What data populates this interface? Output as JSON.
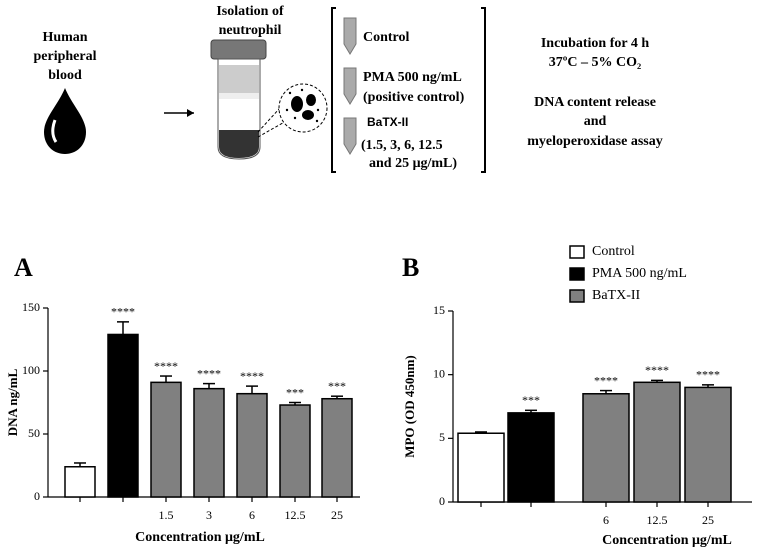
{
  "diagram": {
    "source": [
      "Human",
      "peripheral",
      "blood"
    ],
    "isolation": [
      "Isolation of",
      "neutrophil"
    ],
    "treatments": [
      "Control",
      "PMA 500 ng/mL",
      "(positive control)",
      "BaTX-II",
      "(1.5, 3, 6, 12.5",
      "and 25 μg/mL)"
    ],
    "conditions": [
      "Incubation for 4 h",
      "37ºC – 5% CO₂"
    ],
    "assays": [
      "DNA content release",
      "and",
      "myeloperoxidase assay"
    ]
  },
  "chart_data": [
    {
      "type": "bar",
      "panel": "A",
      "y_label": "DNA ng/mL",
      "x_label": "Concentration μg/mL",
      "categories": [
        null,
        null,
        "1.5",
        "3",
        "6",
        "12.5",
        "25"
      ],
      "values": [
        24,
        129,
        91,
        86,
        82,
        73,
        78
      ],
      "errors": [
        3,
        10,
        5,
        4,
        6,
        2,
        2
      ],
      "value_labels": [
        null,
        "****",
        "****",
        "****",
        "****",
        "***",
        "***"
      ],
      "colors": [
        "#ffffff",
        "#000000",
        "#808080",
        "#808080",
        "#808080",
        "#808080",
        "#808080"
      ],
      "ylim": [
        0,
        150
      ],
      "yticks": [
        0,
        50,
        100,
        150
      ]
    },
    {
      "type": "bar",
      "panel": "B",
      "y_label": "MPO (OD 450nm)",
      "x_label": "Concentration μg/mL",
      "categories": [
        null,
        null,
        "6",
        "12.5",
        "25"
      ],
      "values": [
        5.4,
        7.0,
        8.5,
        9.4,
        9.0
      ],
      "errors": [
        0.1,
        0.2,
        0.25,
        0.15,
        0.2
      ],
      "value_labels": [
        null,
        "***",
        "****",
        "****",
        "****"
      ],
      "colors": [
        "#ffffff",
        "#000000",
        "#808080",
        "#808080",
        "#808080"
      ],
      "ylim": [
        0,
        15
      ],
      "yticks": [
        0,
        5,
        10,
        15
      ],
      "legend": [
        {
          "name": "Control",
          "color": "#ffffff"
        },
        {
          "name": "PMA 500 ng/mL",
          "color": "#000000"
        },
        {
          "name": "BaTX-II",
          "color": "#808080"
        }
      ]
    }
  ]
}
